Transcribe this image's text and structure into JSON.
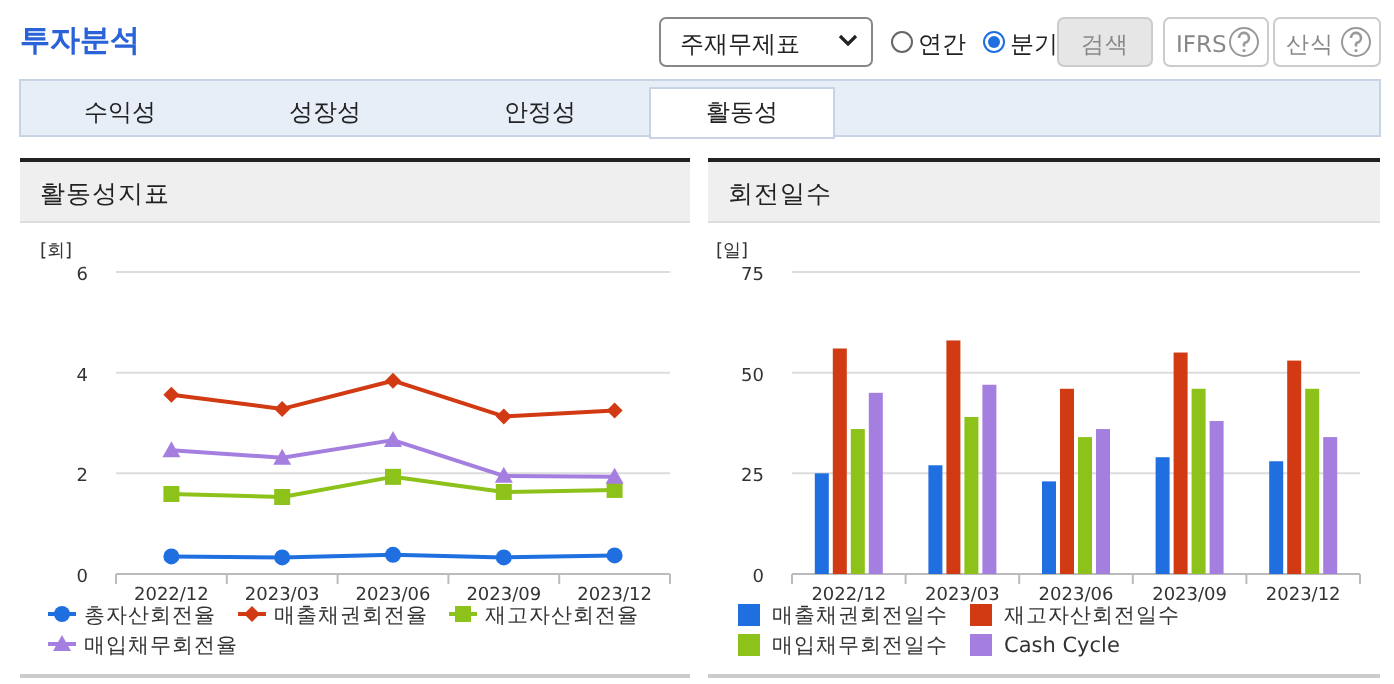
{
  "chart_data": [
    {
      "type": "other",
      "title": "투자분석",
      "annotations": [
        "주재무제표",
        "연간",
        "분기",
        "검색",
        "IFRS",
        "산식",
        "수익성",
        "성장성",
        "안정성",
        "활동성"
      ]
    },
    {
      "type": "line",
      "title": "활동성지표",
      "ylabel": "[회]",
      "categories": [
        "2022/12",
        "2023/03",
        "2023/06",
        "2023/09",
        "2023/12"
      ],
      "ylim": [
        0,
        6
      ],
      "yticks": [
        0,
        2,
        4,
        6
      ],
      "grid": "y",
      "legend": "bottom",
      "series": [
        {
          "name": "총자산회전율",
          "color": "#1f6fe0",
          "marker": "circle",
          "values": [
            0.35,
            0.33,
            0.38,
            0.33,
            0.37
          ]
        },
        {
          "name": "매출채권회전율",
          "color": "#d13a12",
          "marker": "diamond",
          "values": [
            3.56,
            3.28,
            3.84,
            3.13,
            3.25
          ]
        },
        {
          "name": "재고자산회전율",
          "color": "#8cc21a",
          "marker": "square",
          "values": [
            1.59,
            1.53,
            1.93,
            1.63,
            1.67
          ]
        },
        {
          "name": "매입채무회전율",
          "color": "#a57fe0",
          "marker": "triangle",
          "values": [
            2.46,
            2.31,
            2.66,
            1.95,
            1.93
          ]
        }
      ]
    },
    {
      "type": "bar",
      "title": "회전일수",
      "ylabel": "[일]",
      "categories": [
        "2022/12",
        "2023/03",
        "2023/06",
        "2023/09",
        "2023/12"
      ],
      "ylim": [
        0,
        75
      ],
      "yticks": [
        0,
        25,
        50,
        75
      ],
      "grid": "y",
      "legend": "bottom",
      "series": [
        {
          "name": "매출채권회전일수",
          "color": "#1f6fe0",
          "values": [
            25,
            27,
            23,
            29,
            28
          ]
        },
        {
          "name": "재고자산회전일수",
          "color": "#d13a12",
          "values": [
            56,
            58,
            46,
            55,
            53
          ]
        },
        {
          "name": "매입채무회전일수",
          "color": "#8cc21a",
          "values": [
            36,
            39,
            34,
            46,
            46
          ]
        },
        {
          "name": "Cash Cycle",
          "color": "#a57fe0",
          "values": [
            45,
            47,
            36,
            38,
            34
          ]
        }
      ]
    }
  ]
}
